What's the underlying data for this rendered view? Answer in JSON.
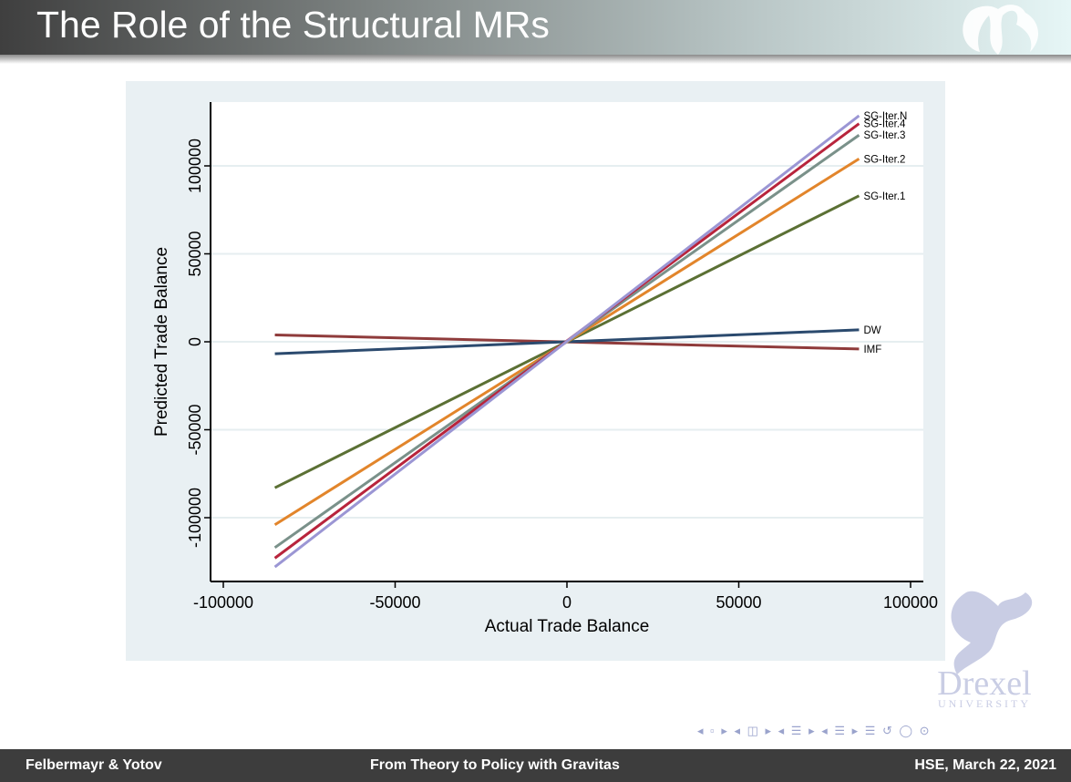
{
  "slide": {
    "title": "The Role of the Structural MRs"
  },
  "footer": {
    "left": "Felbermayr & Yotov",
    "center": "From Theory to Policy with Gravitas",
    "right": "HSE, March 22, 2021"
  },
  "nav": {
    "symbols": "◂ ▫ ▸ ◂ ◫ ▸ ◂ ☰ ▸ ◂ ☰ ▸   ☰   ↺ ◯ ⊙"
  },
  "logo": {
    "text": "Drexel",
    "subtext": "UNIVERSITY"
  },
  "colors": {
    "header": "#3f3f3f",
    "panel": "#e9f0f3",
    "footer": "#3d3d3d"
  },
  "chart_data": {
    "type": "line",
    "xlabel": "Actual Trade Balance",
    "ylabel": "Predicted Trade Balance",
    "xlim": [
      -104000,
      104000
    ],
    "ylim": [
      -136000,
      136000
    ],
    "xticks": [
      -100000,
      -50000,
      0,
      50000,
      100000
    ],
    "yticks": [
      -100000,
      -50000,
      0,
      50000,
      100000
    ],
    "grid": "horizontal",
    "x": [
      -85000,
      85000
    ],
    "series": [
      {
        "name": "SG-Iter.N",
        "values": [
          -128000,
          128500
        ],
        "color": "#9b96d4"
      },
      {
        "name": "SG-Iter.4",
        "values": [
          -123000,
          124000
        ],
        "color": "#b8243c"
      },
      {
        "name": "SG-Iter.3",
        "values": [
          -117000,
          117500
        ],
        "color": "#7a918a"
      },
      {
        "name": "SG-Iter.2",
        "values": [
          -104000,
          104000
        ],
        "color": "#e2852b"
      },
      {
        "name": "SG-Iter.1",
        "values": [
          -83000,
          83000
        ],
        "color": "#5b7034"
      },
      {
        "name": "DW",
        "values": [
          -6800,
          6800
        ],
        "color": "#2b4a6e"
      },
      {
        "name": "IMF",
        "values": [
          3900,
          -4100
        ],
        "color": "#8f3b3b"
      }
    ]
  }
}
